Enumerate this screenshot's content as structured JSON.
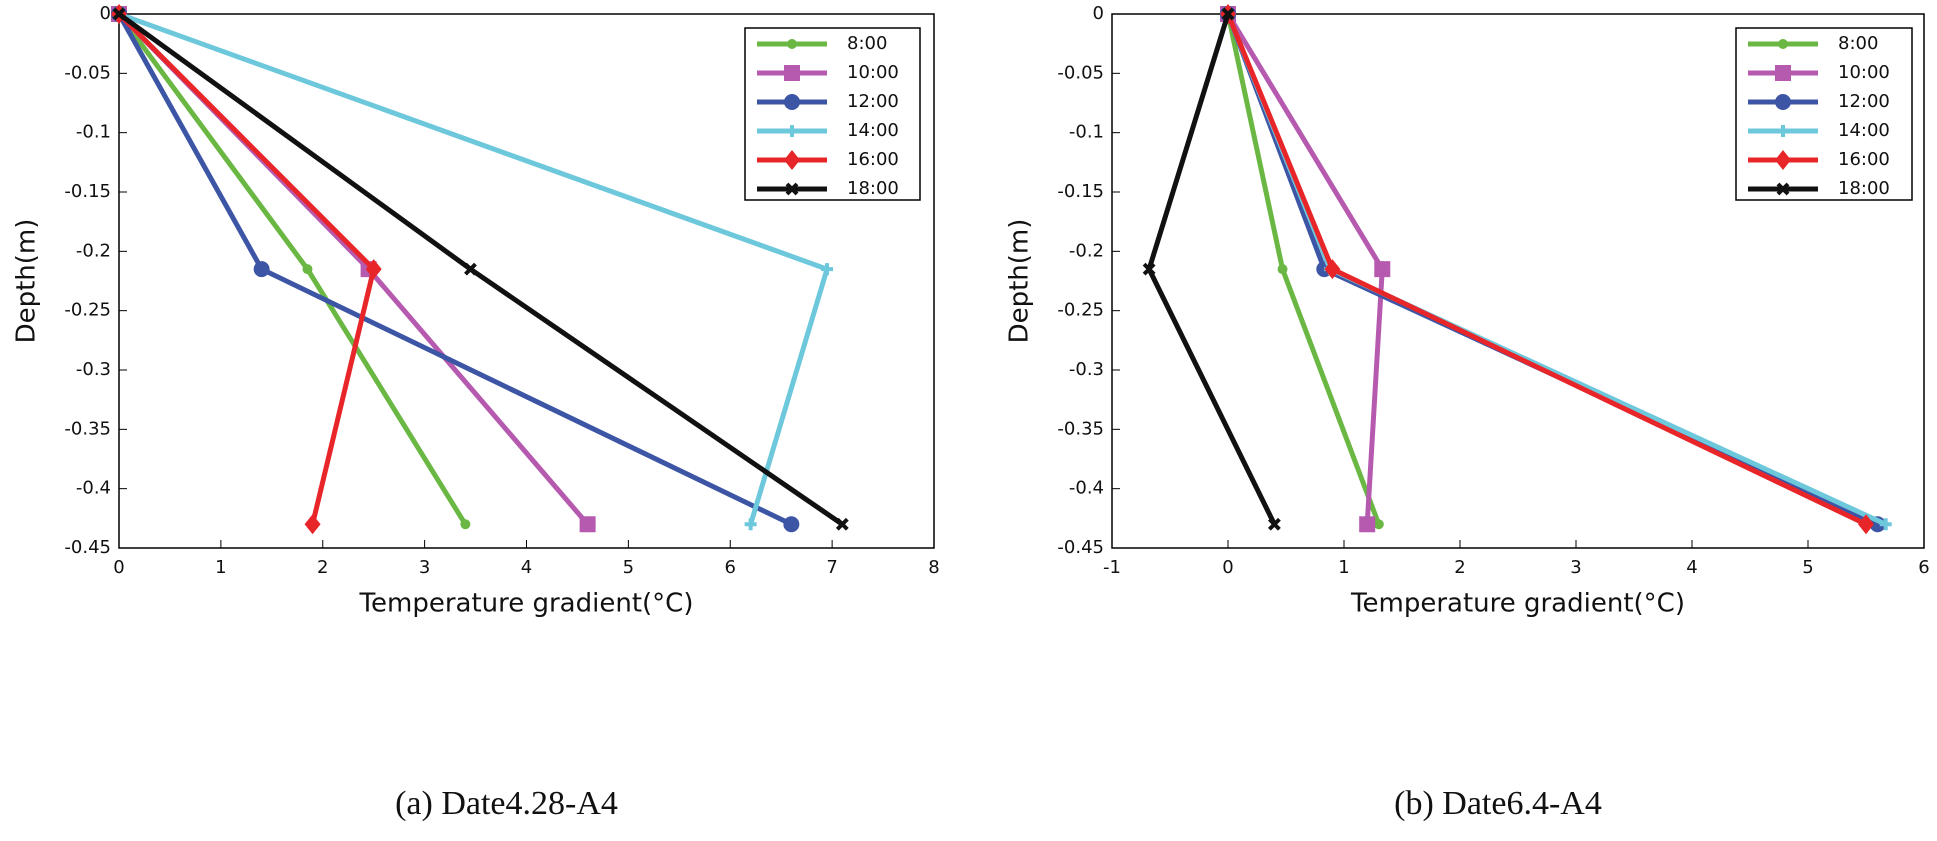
{
  "chart_data": [
    {
      "type": "line",
      "caption": "(a) Date4.28-A4",
      "xlabel": "Temperature gradient(°C)",
      "ylabel": "Depth(m)",
      "xlim": [
        0,
        8
      ],
      "xticks": [
        0,
        1,
        2,
        3,
        4,
        5,
        6,
        7,
        8
      ],
      "ylim": [
        -0.45,
        0
      ],
      "yticks": [
        0,
        -0.05,
        -0.1,
        -0.15,
        -0.2,
        -0.25,
        -0.3,
        -0.35,
        -0.4,
        -0.45
      ],
      "legend": "upper-right",
      "series": [
        {
          "name": "8:00",
          "color": "#6ab843",
          "marker": "dot",
          "x": [
            0,
            1.85,
            3.4
          ],
          "y": [
            0,
            -0.215,
            -0.43
          ]
        },
        {
          "name": "10:00",
          "color": "#b65ab0",
          "marker": "square",
          "x": [
            0,
            2.45,
            4.6
          ],
          "y": [
            0,
            -0.215,
            -0.43
          ]
        },
        {
          "name": "12:00",
          "color": "#3c55a5",
          "marker": "circle",
          "x": [
            0,
            1.4,
            6.6
          ],
          "y": [
            0,
            -0.215,
            -0.43
          ]
        },
        {
          "name": "14:00",
          "color": "#6ec8dc",
          "marker": "plus",
          "x": [
            0,
            6.95,
            6.2
          ],
          "y": [
            0,
            -0.215,
            -0.43
          ]
        },
        {
          "name": "16:00",
          "color": "#e8262a",
          "marker": "diamond",
          "x": [
            0,
            2.5,
            1.9
          ],
          "y": [
            0,
            -0.215,
            -0.43
          ]
        },
        {
          "name": "18:00",
          "color": "#111111",
          "marker": "cross",
          "x": [
            0,
            3.45,
            7.1
          ],
          "y": [
            0,
            -0.215,
            -0.43
          ]
        }
      ]
    },
    {
      "type": "line",
      "caption": "(b) Date6.4-A4",
      "xlabel": "Temperature gradient(°C)",
      "ylabel": "Depth(m)",
      "xlim": [
        -1,
        6
      ],
      "xticks": [
        -1,
        0,
        1,
        2,
        3,
        4,
        5,
        6
      ],
      "ylim": [
        -0.45,
        0
      ],
      "yticks": [
        0,
        -0.05,
        -0.1,
        -0.15,
        -0.2,
        -0.25,
        -0.3,
        -0.35,
        -0.4,
        -0.45
      ],
      "legend": "upper-right",
      "series": [
        {
          "name": "8:00",
          "color": "#6ab843",
          "marker": "dot",
          "x": [
            0,
            0.47,
            1.3
          ],
          "y": [
            0,
            -0.215,
            -0.43
          ]
        },
        {
          "name": "10:00",
          "color": "#b65ab0",
          "marker": "square",
          "x": [
            0,
            1.33,
            1.2
          ],
          "y": [
            0,
            -0.215,
            -0.43
          ]
        },
        {
          "name": "12:00",
          "color": "#3c55a5",
          "marker": "circle",
          "x": [
            0,
            0.83,
            5.6
          ],
          "y": [
            0,
            -0.215,
            -0.43
          ]
        },
        {
          "name": "14:00",
          "color": "#6ec8dc",
          "marker": "plus",
          "x": [
            0,
            0.88,
            5.67
          ],
          "y": [
            0,
            -0.215,
            -0.43
          ]
        },
        {
          "name": "16:00",
          "color": "#e8262a",
          "marker": "diamond",
          "x": [
            0,
            0.9,
            5.5
          ],
          "y": [
            0,
            -0.215,
            -0.43
          ]
        },
        {
          "name": "18:00",
          "color": "#111111",
          "marker": "cross",
          "x": [
            0,
            -0.68,
            0.4
          ],
          "y": [
            0,
            -0.215,
            -0.43
          ]
        }
      ]
    }
  ]
}
